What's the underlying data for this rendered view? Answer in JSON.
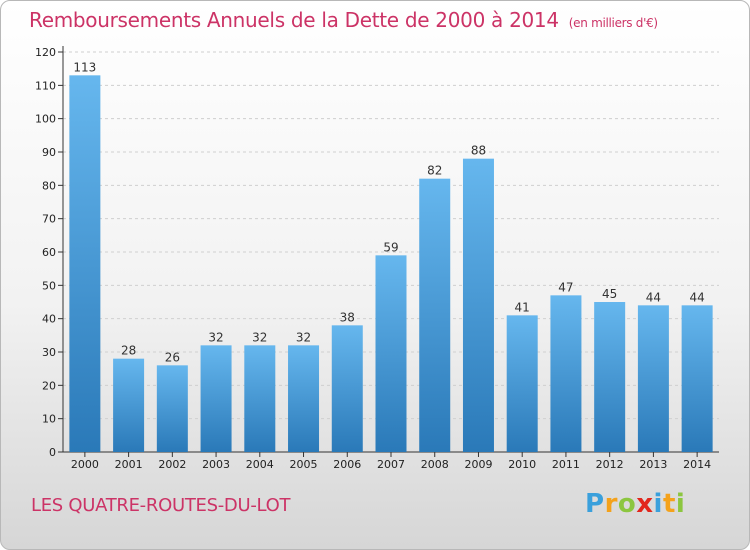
{
  "header": {
    "title": "Remboursements Annuels de la Dette de 2000 à 2014",
    "unit": "(en milliers d'€)"
  },
  "footer": {
    "place": "LES QUATRE-ROUTES-DU-LOT",
    "brand_letters": [
      "P",
      "r",
      "o",
      "x",
      "i",
      "t",
      "i"
    ],
    "brand_colors": [
      "#3aa0dc",
      "#f4a21b",
      "#8cc63f",
      "#e2261c",
      "#3aa0dc",
      "#f4a21b",
      "#8cc63f"
    ]
  },
  "colors": {
    "title": "#cc3366",
    "bar_top": "#66b7ee",
    "bar_bottom": "#2a79b8",
    "grid": "#cfcfcf"
  },
  "chart_data": {
    "type": "bar",
    "title": "Remboursements Annuels de la Dette de 2000 à 2014",
    "ylabel": "",
    "xlabel": "",
    "categories": [
      "2000",
      "2001",
      "2002",
      "2003",
      "2004",
      "2005",
      "2006",
      "2007",
      "2008",
      "2009",
      "2010",
      "2011",
      "2012",
      "2013",
      "2014"
    ],
    "values": [
      113,
      28,
      26,
      32,
      32,
      32,
      38,
      59,
      82,
      88,
      41,
      47,
      45,
      44,
      44
    ],
    "ylim": [
      0,
      120
    ],
    "yticks": [
      0,
      10,
      20,
      30,
      40,
      50,
      60,
      70,
      80,
      90,
      100,
      110,
      120
    ],
    "grid": true,
    "legend": "none"
  }
}
